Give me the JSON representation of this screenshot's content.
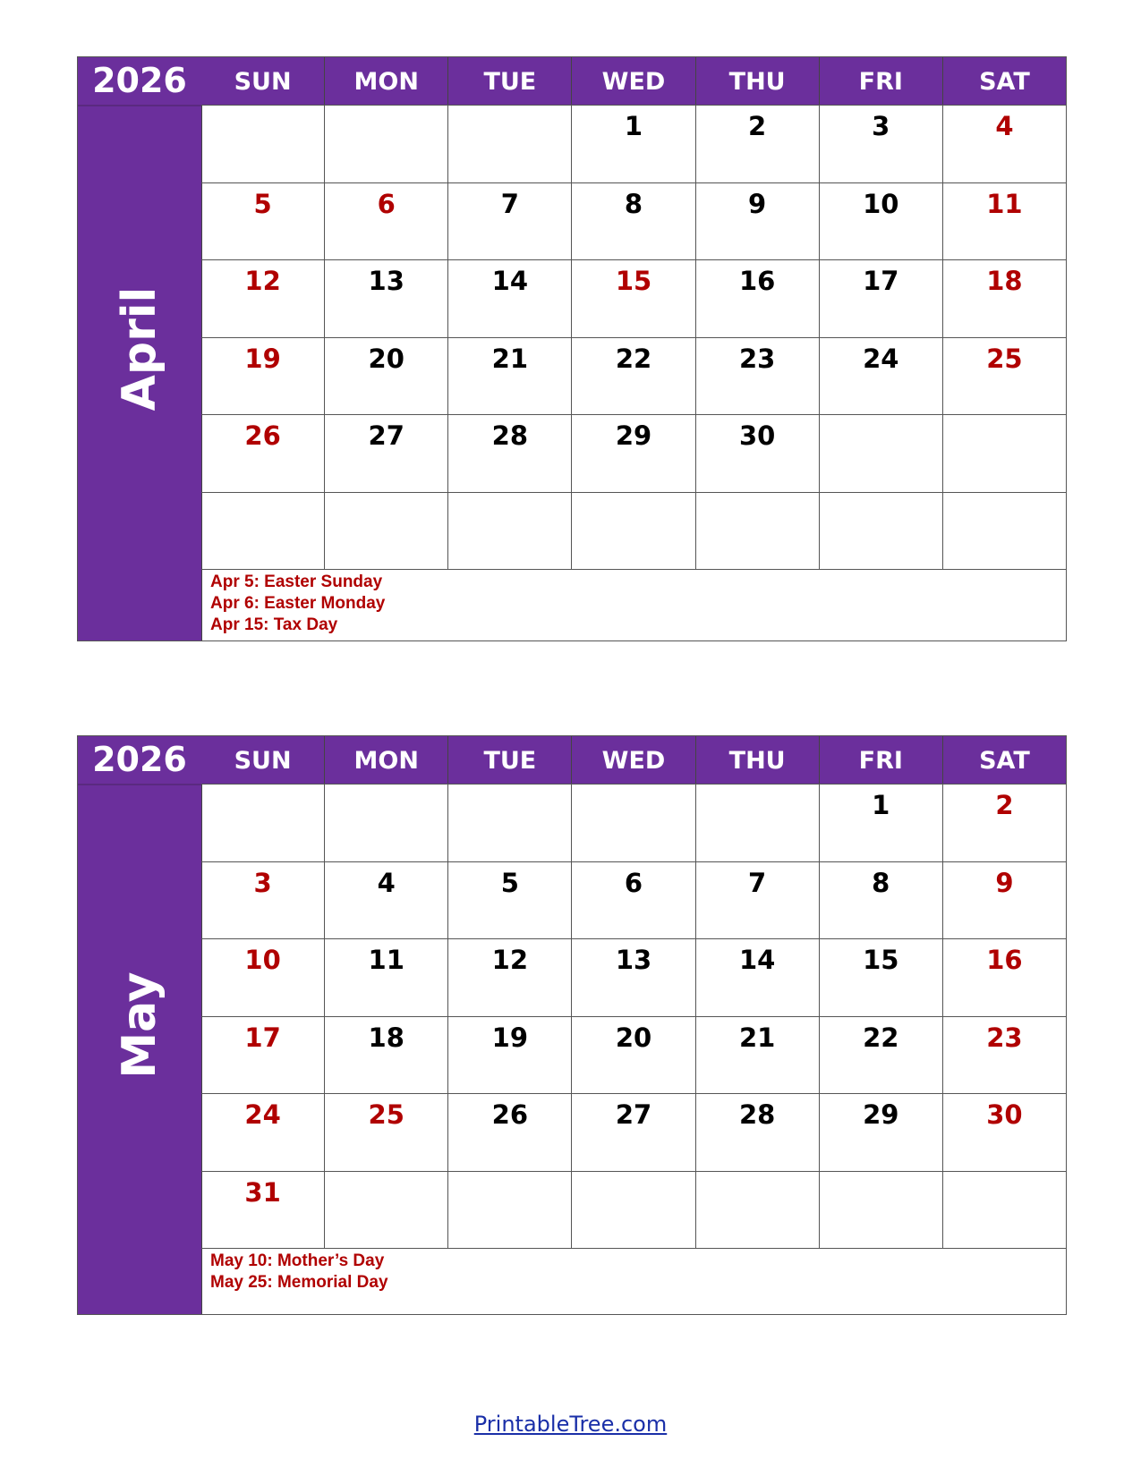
{
  "colors": {
    "accent": "#6B2F9C",
    "holiday": "#B00000"
  },
  "weekdays": [
    "SUN",
    "MON",
    "TUE",
    "WED",
    "THU",
    "FRI",
    "SAT"
  ],
  "months": [
    {
      "year": "2026",
      "name": "April",
      "weeks": [
        [
          "",
          "",
          "",
          "1",
          "2",
          "3",
          "4"
        ],
        [
          "5",
          "6",
          "7",
          "8",
          "9",
          "10",
          "11"
        ],
        [
          "12",
          "13",
          "14",
          "15",
          "16",
          "17",
          "18"
        ],
        [
          "19",
          "20",
          "21",
          "22",
          "23",
          "24",
          "25"
        ],
        [
          "26",
          "27",
          "28",
          "29",
          "30",
          "",
          ""
        ],
        [
          "",
          "",
          "",
          "",
          "",
          "",
          ""
        ]
      ],
      "red_days": [
        "4",
        "5",
        "6",
        "11",
        "12",
        "15",
        "18",
        "19",
        "25",
        "26"
      ],
      "notes": [
        "Apr 5:  Easter Sunday",
        "Apr 6:  Easter Monday",
        "Apr 15:  Tax Day"
      ]
    },
    {
      "year": "2026",
      "name": "May",
      "weeks": [
        [
          "",
          "",
          "",
          "",
          "",
          "1",
          "2"
        ],
        [
          "3",
          "4",
          "5",
          "6",
          "7",
          "8",
          "9"
        ],
        [
          "10",
          "11",
          "12",
          "13",
          "14",
          "15",
          "16"
        ],
        [
          "17",
          "18",
          "19",
          "20",
          "21",
          "22",
          "23"
        ],
        [
          "24",
          "25",
          "26",
          "27",
          "28",
          "29",
          "30"
        ],
        [
          "31",
          "",
          "",
          "",
          "",
          "",
          ""
        ]
      ],
      "red_days": [
        "2",
        "3",
        "9",
        "10",
        "16",
        "17",
        "23",
        "24",
        "25",
        "30",
        "31"
      ],
      "notes": [
        "May 10: Mother’s Day",
        "May 25: Memorial Day"
      ]
    }
  ],
  "footer": {
    "link": "PrintableTree.com"
  }
}
